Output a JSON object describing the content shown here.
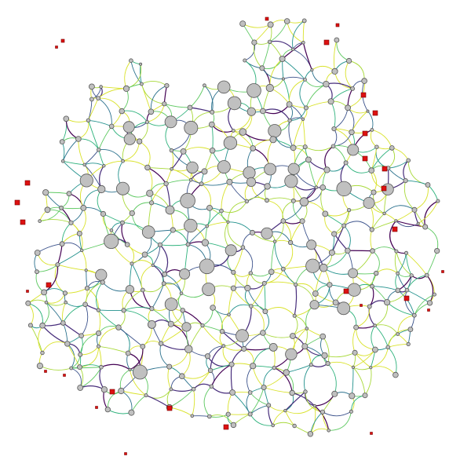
{
  "palette": {
    "background": "#ffffff",
    "node_fill": "#c0c0c0",
    "node_stroke": "#555555",
    "terminal_fill": "#dd1111",
    "edge_colors": [
      "#d9e22a",
      "#a8d93a",
      "#5ec962",
      "#2eb27c",
      "#21918c",
      "#2c728e",
      "#3b528b",
      "#472d7b",
      "#440154"
    ]
  }
}
